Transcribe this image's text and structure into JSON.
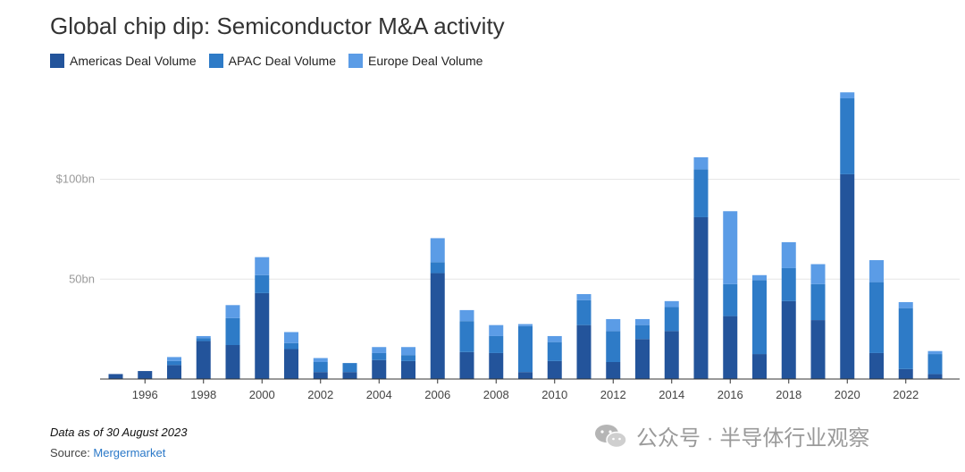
{
  "chart_data": {
    "type": "bar",
    "stacked": true,
    "title": "Global chip dip: Semiconductor M&A activity",
    "years": [
      1995,
      1996,
      1997,
      1998,
      1999,
      2000,
      2001,
      2002,
      2003,
      2004,
      2005,
      2006,
      2007,
      2008,
      2009,
      2010,
      2011,
      2012,
      2013,
      2014,
      2015,
      2016,
      2017,
      2018,
      2019,
      2020,
      2021,
      2022,
      2023
    ],
    "x_tick_labels": [
      "1996",
      "1998",
      "2000",
      "2002",
      "2004",
      "2006",
      "2008",
      "2010",
      "2012",
      "2014",
      "2016",
      "2018",
      "2020",
      "2022"
    ],
    "y_tick_labels": [
      {
        "value": 50,
        "label": "50bn"
      },
      {
        "value": 100,
        "label": "$100bn"
      }
    ],
    "ylim": [
      0,
      150
    ],
    "grid": true,
    "legend_position": "top-left",
    "series": [
      {
        "name": "Americas Deal Volume",
        "color": "#23549b",
        "values": [
          2.5,
          4,
          7,
          19,
          17,
          43,
          15,
          3.5,
          3.5,
          9.5,
          9,
          53,
          13.5,
          13,
          3.5,
          9,
          27,
          8.5,
          20,
          24,
          81,
          31.5,
          12.5,
          39,
          29.5,
          102.5,
          13,
          5,
          2.5
        ]
      },
      {
        "name": "APAC Deal Volume",
        "color": "#2e7bc7",
        "values": [
          0,
          0,
          2,
          1.5,
          13.5,
          9,
          3,
          5,
          4.5,
          3.5,
          3,
          5.5,
          15.5,
          8.5,
          23,
          9.5,
          12.5,
          15.5,
          7,
          12,
          24,
          16,
          37,
          16.5,
          18,
          38,
          35.5,
          30.5,
          10
        ]
      },
      {
        "name": "Europe Deal Volume",
        "color": "#5b9ce6",
        "values": [
          0,
          0,
          2,
          1,
          6.5,
          9,
          5.5,
          2,
          0,
          3,
          4,
          12,
          5.5,
          5.5,
          1,
          3,
          3,
          6,
          3,
          3,
          6,
          36.5,
          2.5,
          13,
          10,
          3,
          11,
          3,
          1.5
        ]
      }
    ]
  },
  "footnote": "Data as of 30 August 2023",
  "source": {
    "prefix": "Source: ",
    "name": "Mergermarket"
  },
  "watermark": {
    "text": "公众号 · 半导体行业观察",
    "icon": "wechat-logo-icon"
  }
}
